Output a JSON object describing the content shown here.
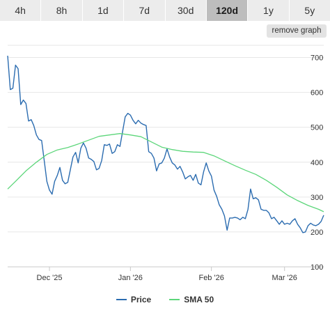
{
  "tabs": [
    {
      "label": "4h",
      "active": false
    },
    {
      "label": "8h",
      "active": false
    },
    {
      "label": "1d",
      "active": false
    },
    {
      "label": "7d",
      "active": false
    },
    {
      "label": "30d",
      "active": false
    },
    {
      "label": "120d",
      "active": true
    },
    {
      "label": "1y",
      "active": false
    },
    {
      "label": "5y",
      "active": false
    }
  ],
  "remove_graph_label": "remove graph",
  "colors": {
    "price": "#2b6cb0",
    "sma": "#5cd67a",
    "grid": "#e6e6e6",
    "axis": "#c8c8c8",
    "tab_bg": "#ececec",
    "tab_active_bg": "#bdbdbd"
  },
  "chart_data": {
    "type": "line",
    "x_range": [
      "2025-11-15",
      "2026-03-16"
    ],
    "ylim": [
      100,
      735
    ],
    "y_ticks": [
      100,
      200,
      300,
      400,
      500,
      600,
      700
    ],
    "y_tick_labels": [
      "100",
      "200",
      "300",
      "400",
      "500",
      "600",
      "700"
    ],
    "x_ticks": [
      {
        "date": "2025-12-01",
        "label": "Dec '25"
      },
      {
        "date": "2026-01-01",
        "label": "Jan '26"
      },
      {
        "date": "2026-02-01",
        "label": "Feb '26"
      },
      {
        "date": "2026-03-01",
        "label": "Mar '26"
      }
    ],
    "legend_position": "bottom-center",
    "series": [
      {
        "name": "Price",
        "points": [
          [
            "2025-11-15",
            705
          ],
          [
            "2025-11-16",
            608
          ],
          [
            "2025-11-17",
            612
          ],
          [
            "2025-11-18",
            678
          ],
          [
            "2025-11-19",
            668
          ],
          [
            "2025-11-20",
            565
          ],
          [
            "2025-11-21",
            578
          ],
          [
            "2025-11-22",
            568
          ],
          [
            "2025-11-23",
            518
          ],
          [
            "2025-11-24",
            522
          ],
          [
            "2025-11-25",
            505
          ],
          [
            "2025-11-26",
            478
          ],
          [
            "2025-11-27",
            465
          ],
          [
            "2025-11-28",
            462
          ],
          [
            "2025-11-29",
            405
          ],
          [
            "2025-11-30",
            345
          ],
          [
            "2025-12-01",
            320
          ],
          [
            "2025-12-02",
            308
          ],
          [
            "2025-12-03",
            345
          ],
          [
            "2025-12-04",
            362
          ],
          [
            "2025-12-05",
            385
          ],
          [
            "2025-12-06",
            348
          ],
          [
            "2025-12-07",
            338
          ],
          [
            "2025-12-08",
            342
          ],
          [
            "2025-12-09",
            378
          ],
          [
            "2025-12-10",
            415
          ],
          [
            "2025-12-11",
            428
          ],
          [
            "2025-12-12",
            398
          ],
          [
            "2025-12-13",
            440
          ],
          [
            "2025-12-14",
            455
          ],
          [
            "2025-12-15",
            440
          ],
          [
            "2025-12-16",
            412
          ],
          [
            "2025-12-17",
            408
          ],
          [
            "2025-12-18",
            402
          ],
          [
            "2025-12-19",
            378
          ],
          [
            "2025-12-20",
            382
          ],
          [
            "2025-12-21",
            405
          ],
          [
            "2025-12-22",
            450
          ],
          [
            "2025-12-23",
            448
          ],
          [
            "2025-12-24",
            452
          ],
          [
            "2025-12-25",
            425
          ],
          [
            "2025-12-26",
            430
          ],
          [
            "2025-12-27",
            450
          ],
          [
            "2025-12-28",
            445
          ],
          [
            "2025-12-29",
            488
          ],
          [
            "2025-12-30",
            530
          ],
          [
            "2025-12-31",
            540
          ],
          [
            "2026-01-01",
            535
          ],
          [
            "2026-01-02",
            520
          ],
          [
            "2026-01-03",
            510
          ],
          [
            "2026-01-04",
            520
          ],
          [
            "2026-01-05",
            512
          ],
          [
            "2026-01-06",
            508
          ],
          [
            "2026-01-07",
            505
          ],
          [
            "2026-01-08",
            430
          ],
          [
            "2026-01-09",
            425
          ],
          [
            "2026-01-10",
            412
          ],
          [
            "2026-01-11",
            375
          ],
          [
            "2026-01-12",
            395
          ],
          [
            "2026-01-13",
            398
          ],
          [
            "2026-01-14",
            412
          ],
          [
            "2026-01-15",
            438
          ],
          [
            "2026-01-16",
            415
          ],
          [
            "2026-01-17",
            398
          ],
          [
            "2026-01-18",
            392
          ],
          [
            "2026-01-19",
            380
          ],
          [
            "2026-01-20",
            388
          ],
          [
            "2026-01-21",
            372
          ],
          [
            "2026-01-22",
            352
          ],
          [
            "2026-01-23",
            358
          ],
          [
            "2026-01-24",
            362
          ],
          [
            "2026-01-25",
            348
          ],
          [
            "2026-01-26",
            365
          ],
          [
            "2026-01-27",
            340
          ],
          [
            "2026-01-28",
            335
          ],
          [
            "2026-01-29",
            372
          ],
          [
            "2026-01-30",
            398
          ],
          [
            "2026-01-31",
            375
          ],
          [
            "2026-02-01",
            360
          ],
          [
            "2026-02-02",
            320
          ],
          [
            "2026-02-03",
            302
          ],
          [
            "2026-02-04",
            278
          ],
          [
            "2026-02-05",
            265
          ],
          [
            "2026-02-06",
            246
          ],
          [
            "2026-02-07",
            205
          ],
          [
            "2026-02-08",
            240
          ],
          [
            "2026-02-09",
            240
          ],
          [
            "2026-02-10",
            242
          ],
          [
            "2026-02-11",
            240
          ],
          [
            "2026-02-12",
            235
          ],
          [
            "2026-02-13",
            242
          ],
          [
            "2026-02-14",
            238
          ],
          [
            "2026-02-15",
            265
          ],
          [
            "2026-02-16",
            323
          ],
          [
            "2026-02-17",
            295
          ],
          [
            "2026-02-18",
            298
          ],
          [
            "2026-02-19",
            292
          ],
          [
            "2026-02-20",
            265
          ],
          [
            "2026-02-21",
            262
          ],
          [
            "2026-02-22",
            262
          ],
          [
            "2026-02-23",
            255
          ],
          [
            "2026-02-24",
            238
          ],
          [
            "2026-02-25",
            242
          ],
          [
            "2026-02-26",
            232
          ],
          [
            "2026-02-27",
            222
          ],
          [
            "2026-02-28",
            232
          ],
          [
            "2026-03-01",
            222
          ],
          [
            "2026-03-02",
            225
          ],
          [
            "2026-03-03",
            222
          ],
          [
            "2026-03-04",
            232
          ],
          [
            "2026-03-05",
            238
          ],
          [
            "2026-03-06",
            222
          ],
          [
            "2026-03-07",
            212
          ],
          [
            "2026-03-08",
            198
          ],
          [
            "2026-03-09",
            200
          ],
          [
            "2026-03-10",
            218
          ],
          [
            "2026-03-11",
            225
          ],
          [
            "2026-03-12",
            220
          ],
          [
            "2026-03-13",
            218
          ],
          [
            "2026-03-14",
            222
          ],
          [
            "2026-03-15",
            230
          ],
          [
            "2026-03-16",
            248
          ]
        ]
      },
      {
        "name": "SMA 50",
        "points": [
          [
            "2025-11-15",
            323
          ],
          [
            "2025-11-18",
            345
          ],
          [
            "2025-11-22",
            375
          ],
          [
            "2025-11-26",
            400
          ],
          [
            "2025-11-30",
            422
          ],
          [
            "2025-12-04",
            435
          ],
          [
            "2025-12-08",
            442
          ],
          [
            "2025-12-12",
            452
          ],
          [
            "2025-12-16",
            463
          ],
          [
            "2025-12-20",
            474
          ],
          [
            "2025-12-24",
            478
          ],
          [
            "2025-12-28",
            482
          ],
          [
            "2026-01-01",
            478
          ],
          [
            "2026-01-05",
            473
          ],
          [
            "2026-01-09",
            458
          ],
          [
            "2026-01-13",
            443
          ],
          [
            "2026-01-17",
            436
          ],
          [
            "2026-01-21",
            431
          ],
          [
            "2026-01-25",
            429
          ],
          [
            "2026-01-29",
            428
          ],
          [
            "2026-02-02",
            418
          ],
          [
            "2026-02-06",
            404
          ],
          [
            "2026-02-10",
            390
          ],
          [
            "2026-02-14",
            377
          ],
          [
            "2026-02-18",
            365
          ],
          [
            "2026-02-22",
            348
          ],
          [
            "2026-02-26",
            328
          ],
          [
            "2026-03-02",
            306
          ],
          [
            "2026-03-06",
            290
          ],
          [
            "2026-03-10",
            276
          ],
          [
            "2026-03-14",
            265
          ],
          [
            "2026-03-16",
            258
          ]
        ]
      }
    ]
  }
}
